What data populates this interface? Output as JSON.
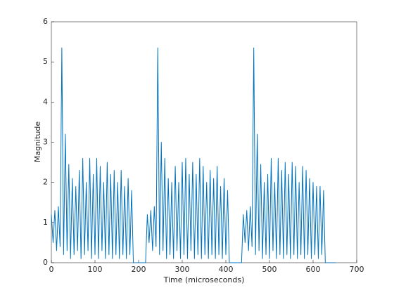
{
  "chart_data": {
    "type": "line",
    "xlabel": "Time (microseconds)",
    "ylabel": "Magnitude",
    "xlim": [
      0,
      700
    ],
    "ylim": [
      0,
      6
    ],
    "xticks": [
      0,
      100,
      200,
      300,
      400,
      500,
      600,
      700
    ],
    "yticks": [
      0,
      1,
      2,
      3,
      4,
      5,
      6
    ],
    "grid": false,
    "x": [
      0,
      4,
      8,
      12,
      16,
      20,
      24,
      28,
      32,
      36,
      40,
      44,
      48,
      52,
      56,
      60,
      64,
      68,
      72,
      76,
      80,
      84,
      88,
      92,
      96,
      100,
      104,
      108,
      112,
      116,
      120,
      124,
      128,
      132,
      136,
      140,
      144,
      148,
      152,
      156,
      160,
      164,
      168,
      172,
      176,
      180,
      184,
      188,
      192,
      196,
      200,
      204,
      208,
      212,
      216,
      220,
      224,
      228,
      232,
      236,
      240,
      244,
      248,
      252,
      256,
      260,
      264,
      268,
      272,
      276,
      280,
      284,
      288,
      292,
      296,
      300,
      304,
      308,
      312,
      316,
      320,
      324,
      328,
      332,
      336,
      340,
      344,
      348,
      352,
      356,
      360,
      364,
      368,
      372,
      376,
      380,
      384,
      388,
      392,
      396,
      400,
      404,
      408,
      412,
      416,
      420,
      424,
      428,
      432,
      436,
      440,
      444,
      448,
      452,
      456,
      460,
      464,
      468,
      472,
      476,
      480,
      484,
      488,
      492,
      496,
      500,
      504,
      508,
      512,
      516,
      520,
      524,
      528,
      532,
      536,
      540,
      544,
      548,
      552,
      556,
      560,
      564,
      568,
      572,
      576,
      580,
      584,
      588,
      592,
      596,
      600,
      604,
      608,
      612,
      616,
      620,
      624,
      628,
      632,
      636,
      640,
      644,
      648,
      652
    ],
    "series": [
      {
        "color": "#0072bd",
        "values": [
          1.2,
          0.5,
          1.3,
          0.3,
          1.4,
          0.4,
          5.35,
          0.2,
          3.2,
          0.3,
          2.45,
          0.1,
          2.1,
          0.2,
          1.9,
          0.3,
          2.3,
          0.1,
          2.6,
          0.2,
          2.0,
          0.3,
          2.6,
          0.1,
          2.2,
          0.2,
          2.6,
          0.1,
          2.4,
          0.3,
          2.0,
          0.1,
          2.5,
          0.2,
          2.2,
          0.1,
          2.3,
          0.2,
          2.0,
          0.1,
          2.3,
          0.2,
          1.9,
          0.1,
          2.1,
          0.2,
          1.8,
          0,
          0,
          0,
          0,
          0,
          0,
          0,
          0,
          1.2,
          0.5,
          1.3,
          0.3,
          1.4,
          0.4,
          5.35,
          0.2,
          3.0,
          0.3,
          2.6,
          0.1,
          2.1,
          0.2,
          2.0,
          0.1,
          2.4,
          0.3,
          2.0,
          0.1,
          2.5,
          0.2,
          2.6,
          0.1,
          2.2,
          0.3,
          2.5,
          0.1,
          2.2,
          0.2,
          2.6,
          0.1,
          2.4,
          0.2,
          2.0,
          0.1,
          2.3,
          0.2,
          2.1,
          0.1,
          2.4,
          0.2,
          1.9,
          0.1,
          2.1,
          0.2,
          1.8,
          0,
          0,
          0,
          0,
          0,
          0,
          0,
          0,
          1.2,
          0.5,
          1.3,
          0.3,
          1.4,
          0.4,
          5.35,
          0.2,
          3.2,
          0.3,
          2.45,
          0.1,
          2.0,
          0.2,
          2.2,
          0.1,
          2.6,
          0.3,
          2.0,
          0.1,
          2.6,
          0.2,
          2.3,
          0.1,
          2.5,
          0.2,
          2.2,
          0.1,
          2.5,
          0.2,
          2.4,
          0.1,
          2.0,
          0.2,
          2.4,
          0.1,
          2.3,
          0.2,
          2.1,
          0.1,
          2.0,
          0.2,
          1.9,
          0.1,
          1.9,
          0.2,
          1.8,
          0,
          0,
          0,
          0,
          0,
          0,
          0
        ]
      }
    ]
  }
}
